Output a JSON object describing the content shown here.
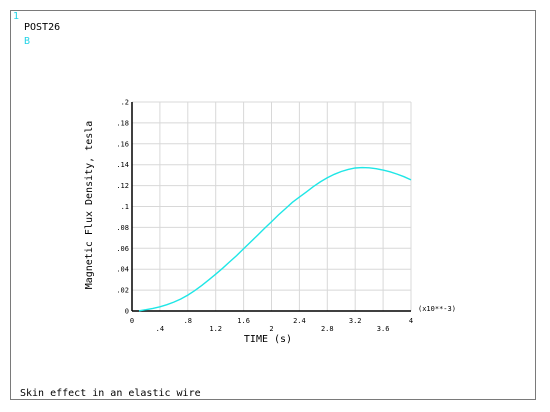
{
  "header": {
    "window_number": "1",
    "program": "POST26",
    "variable_label": "B"
  },
  "footer": {
    "caption": "Skin effect in an elastic wire"
  },
  "colors": {
    "curve": "#1fe6e6",
    "label_cyan": "#22d3e6",
    "grid": "#d8d8d8",
    "axis": "#000000",
    "frame": "#7a7a7a"
  },
  "chart_data": {
    "type": "line",
    "xlabel": "TIME (s)",
    "ylabel": "Magnetic Flux Density, tesla",
    "x_multiplier": "(x10**-3)",
    "xlim": [
      0,
      4
    ],
    "ylim": [
      0,
      0.2
    ],
    "grid": true,
    "x_ticks": [
      0,
      0.4,
      0.8,
      1.2,
      1.6,
      2,
      2.4,
      2.8,
      3.2,
      3.6,
      4
    ],
    "x_tick_labels": [
      "0",
      ".4",
      ".8",
      "1.2",
      "1.6",
      "2",
      "2.4",
      "2.8",
      "3.2",
      "3.6",
      "4"
    ],
    "y_ticks": [
      0,
      0.02,
      0.04,
      0.06,
      0.08,
      0.1,
      0.12,
      0.14,
      0.16,
      0.18,
      0.2
    ],
    "y_tick_labels": [
      "0",
      ".02",
      ".04",
      ".06",
      ".08",
      ".1",
      ".12",
      ".14",
      ".16",
      ".18",
      ".2"
    ],
    "series": [
      {
        "x": [
          0.1,
          0.2,
          0.3,
          0.4,
          0.5,
          0.6,
          0.7,
          0.8,
          0.9,
          1.0,
          1.1,
          1.2,
          1.3,
          1.4,
          1.5,
          1.6,
          1.7,
          1.8,
          1.9,
          2.0,
          2.1,
          2.2,
          2.3,
          2.4,
          2.5,
          2.6,
          2.7,
          2.8,
          2.9,
          3.0,
          3.1,
          3.2,
          3.3,
          3.4,
          3.5,
          3.6,
          3.7,
          3.8,
          3.9,
          4.0
        ],
        "y": [
          0.0002,
          0.0012,
          0.0025,
          0.004,
          0.006,
          0.0085,
          0.0115,
          0.0152,
          0.0195,
          0.0245,
          0.0298,
          0.0352,
          0.041,
          0.047,
          0.053,
          0.0595,
          0.066,
          0.0725,
          0.079,
          0.0855,
          0.092,
          0.098,
          0.104,
          0.109,
          0.114,
          0.119,
          0.1235,
          0.1275,
          0.1308,
          0.1335,
          0.1355,
          0.1368,
          0.1372,
          0.137,
          0.1362,
          0.1348,
          0.1332,
          0.131,
          0.1285,
          0.1255
        ]
      }
    ]
  }
}
